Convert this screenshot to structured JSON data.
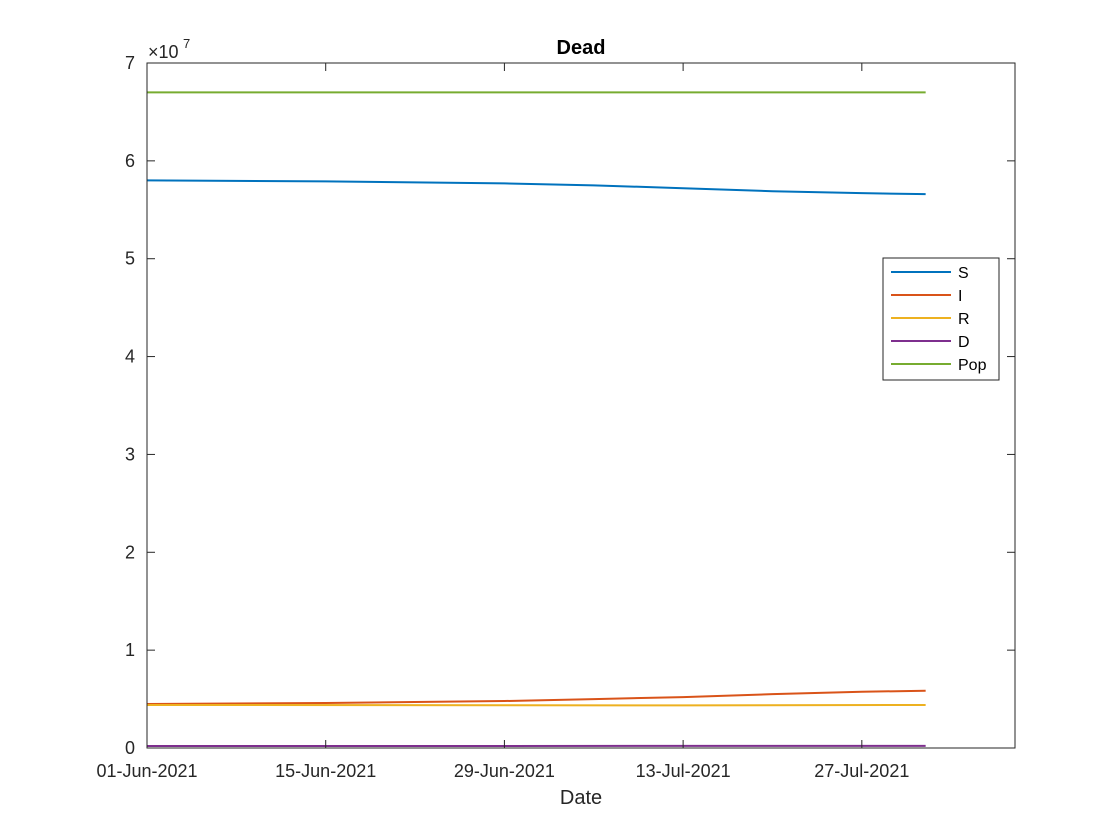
{
  "chart_data": {
    "type": "line",
    "title": "Dead",
    "xlabel": "Date",
    "ylabel": "",
    "x_axis_type": "date",
    "x_start": "2021-06-01",
    "x_end": "2021-08-01",
    "x_ticks": [
      {
        "date": "2021-06-01",
        "label": "01-Jun-2021"
      },
      {
        "date": "2021-06-15",
        "label": "15-Jun-2021"
      },
      {
        "date": "2021-06-29",
        "label": "29-Jun-2021"
      },
      {
        "date": "2021-07-13",
        "label": "13-Jul-2021"
      },
      {
        "date": "2021-07-27",
        "label": "27-Jul-2021"
      }
    ],
    "x_lim": [
      "2021-06-01",
      "2021-08-08"
    ],
    "y_lim": [
      0,
      7
    ],
    "y_ticks": [
      0,
      1,
      2,
      3,
      4,
      5,
      6,
      7
    ],
    "y_tick_labels": [
      "0",
      "1",
      "2",
      "3",
      "4",
      "5",
      "6",
      "7"
    ],
    "y_exponent_label": "×10",
    "y_exponent": "7",
    "grid": false,
    "legend_position": "right",
    "series": [
      {
        "name": "S",
        "color": "#0072BD",
        "points": [
          {
            "x": "2021-06-01",
            "y": 5.8
          },
          {
            "x": "2021-06-15",
            "y": 5.79
          },
          {
            "x": "2021-06-29",
            "y": 5.77
          },
          {
            "x": "2021-07-06",
            "y": 5.75
          },
          {
            "x": "2021-07-13",
            "y": 5.72
          },
          {
            "x": "2021-07-20",
            "y": 5.69
          },
          {
            "x": "2021-07-27",
            "y": 5.67
          },
          {
            "x": "2021-08-01",
            "y": 5.66
          }
        ]
      },
      {
        "name": "I",
        "color": "#D95319",
        "points": [
          {
            "x": "2021-06-01",
            "y": 0.45
          },
          {
            "x": "2021-06-15",
            "y": 0.46
          },
          {
            "x": "2021-06-29",
            "y": 0.48
          },
          {
            "x": "2021-07-06",
            "y": 0.5
          },
          {
            "x": "2021-07-13",
            "y": 0.52
          },
          {
            "x": "2021-07-20",
            "y": 0.55
          },
          {
            "x": "2021-07-27",
            "y": 0.575
          },
          {
            "x": "2021-08-01",
            "y": 0.585
          }
        ]
      },
      {
        "name": "R",
        "color": "#EDB120",
        "points": [
          {
            "x": "2021-06-01",
            "y": 0.44
          },
          {
            "x": "2021-06-29",
            "y": 0.437
          },
          {
            "x": "2021-07-13",
            "y": 0.435
          },
          {
            "x": "2021-08-01",
            "y": 0.44
          }
        ]
      },
      {
        "name": "D",
        "color": "#7E2F8E",
        "points": [
          {
            "x": "2021-06-01",
            "y": 0.02
          },
          {
            "x": "2021-08-01",
            "y": 0.022
          }
        ]
      },
      {
        "name": "Pop",
        "color": "#77AC30",
        "points": [
          {
            "x": "2021-06-01",
            "y": 6.7
          },
          {
            "x": "2021-08-01",
            "y": 6.7
          }
        ]
      }
    ]
  }
}
